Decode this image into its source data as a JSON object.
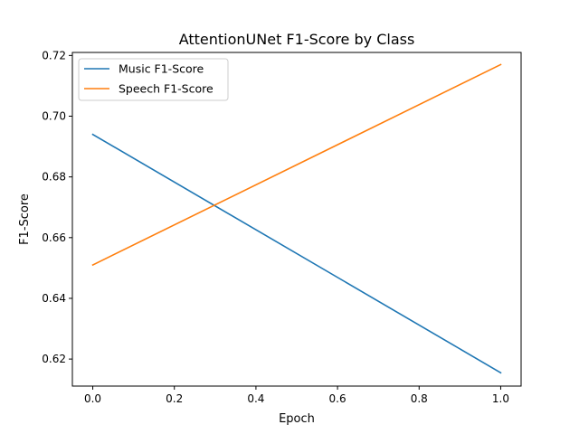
{
  "chart_data": {
    "type": "line",
    "title": "AttentionUNet F1-Score by Class",
    "xlabel": "Epoch",
    "ylabel": "F1-Score",
    "x": [
      0,
      1
    ],
    "xlim": [
      -0.05,
      1.05
    ],
    "ylim": [
      0.6111,
      0.721
    ],
    "xticks": [
      0.0,
      0.2,
      0.4,
      0.6,
      0.8,
      1.0
    ],
    "xtick_labels": [
      "0.0",
      "0.2",
      "0.4",
      "0.6",
      "0.8",
      "1.0"
    ],
    "yticks": [
      0.62,
      0.64,
      0.66,
      0.68,
      0.7,
      0.72
    ],
    "ytick_labels": [
      "0.62",
      "0.64",
      "0.66",
      "0.68",
      "0.70",
      "0.72"
    ],
    "grid": false,
    "legend_position": "top-left",
    "series": [
      {
        "name": "Music F1-Score",
        "values": [
          0.694,
          0.6155
        ],
        "color": "#1f77b4"
      },
      {
        "name": "Speech F1-Score",
        "values": [
          0.651,
          0.717
        ],
        "color": "#ff7f0e"
      }
    ]
  }
}
